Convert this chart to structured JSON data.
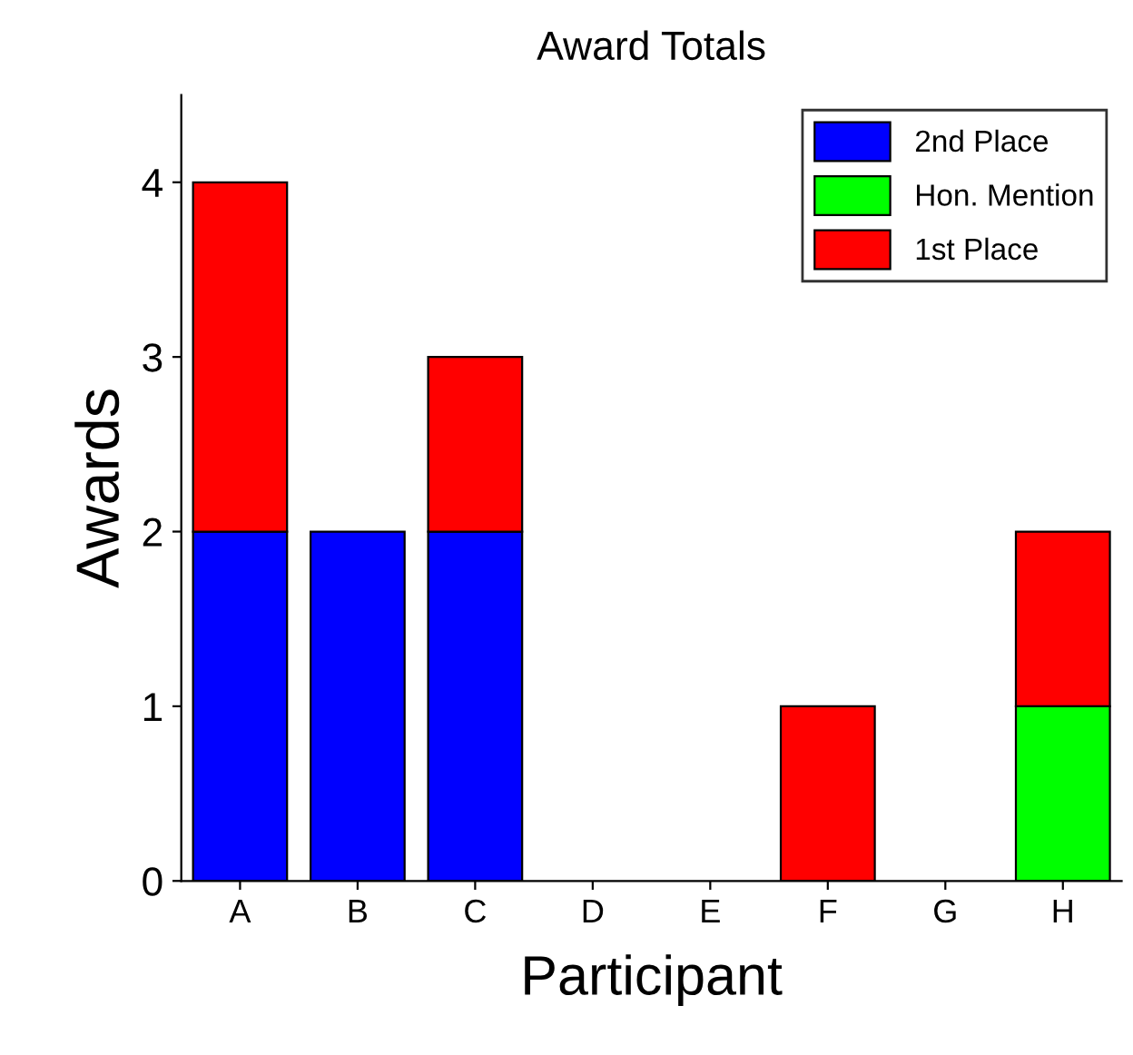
{
  "chart_data": {
    "type": "bar",
    "title": "Award Totals",
    "xlabel": "Participant",
    "ylabel": "Awards",
    "categories": [
      "A",
      "B",
      "C",
      "D",
      "E",
      "F",
      "G",
      "H"
    ],
    "stacked": true,
    "series": [
      {
        "name": "2nd Place",
        "color": "#0000ff",
        "values": [
          2,
          2,
          2,
          0,
          0,
          0,
          0,
          0
        ]
      },
      {
        "name": "Hon. Mention",
        "color": "#00ff00",
        "values": [
          0,
          0,
          0,
          0,
          0,
          0,
          0,
          1
        ]
      },
      {
        "name": "1st Place",
        "color": "#ff0000",
        "values": [
          2,
          0,
          1,
          0,
          0,
          1,
          0,
          1
        ]
      }
    ],
    "ylim": [
      0,
      4.5
    ],
    "yticks": [
      0,
      1,
      2,
      3,
      4
    ],
    "grid": false,
    "legend": "top right"
  }
}
